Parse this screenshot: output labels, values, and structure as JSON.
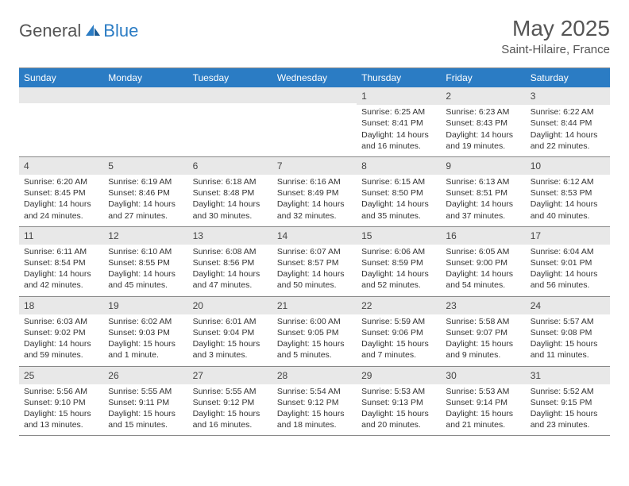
{
  "brand": {
    "general": "General",
    "blue": "Blue"
  },
  "title": "May 2025",
  "location": "Saint-Hilaire, France",
  "colors": {
    "header_bg": "#2b7cc4",
    "header_text": "#ffffff",
    "daynum_bg": "#e8e8e8",
    "border": "#888888",
    "text": "#333333"
  },
  "dayNames": [
    "Sunday",
    "Monday",
    "Tuesday",
    "Wednesday",
    "Thursday",
    "Friday",
    "Saturday"
  ],
  "weeks": [
    [
      {
        "num": "",
        "sunrise": "",
        "sunset": "",
        "daylight": ""
      },
      {
        "num": "",
        "sunrise": "",
        "sunset": "",
        "daylight": ""
      },
      {
        "num": "",
        "sunrise": "",
        "sunset": "",
        "daylight": ""
      },
      {
        "num": "",
        "sunrise": "",
        "sunset": "",
        "daylight": ""
      },
      {
        "num": "1",
        "sunrise": "Sunrise: 6:25 AM",
        "sunset": "Sunset: 8:41 PM",
        "daylight": "Daylight: 14 hours and 16 minutes."
      },
      {
        "num": "2",
        "sunrise": "Sunrise: 6:23 AM",
        "sunset": "Sunset: 8:43 PM",
        "daylight": "Daylight: 14 hours and 19 minutes."
      },
      {
        "num": "3",
        "sunrise": "Sunrise: 6:22 AM",
        "sunset": "Sunset: 8:44 PM",
        "daylight": "Daylight: 14 hours and 22 minutes."
      }
    ],
    [
      {
        "num": "4",
        "sunrise": "Sunrise: 6:20 AM",
        "sunset": "Sunset: 8:45 PM",
        "daylight": "Daylight: 14 hours and 24 minutes."
      },
      {
        "num": "5",
        "sunrise": "Sunrise: 6:19 AM",
        "sunset": "Sunset: 8:46 PM",
        "daylight": "Daylight: 14 hours and 27 minutes."
      },
      {
        "num": "6",
        "sunrise": "Sunrise: 6:18 AM",
        "sunset": "Sunset: 8:48 PM",
        "daylight": "Daylight: 14 hours and 30 minutes."
      },
      {
        "num": "7",
        "sunrise": "Sunrise: 6:16 AM",
        "sunset": "Sunset: 8:49 PM",
        "daylight": "Daylight: 14 hours and 32 minutes."
      },
      {
        "num": "8",
        "sunrise": "Sunrise: 6:15 AM",
        "sunset": "Sunset: 8:50 PM",
        "daylight": "Daylight: 14 hours and 35 minutes."
      },
      {
        "num": "9",
        "sunrise": "Sunrise: 6:13 AM",
        "sunset": "Sunset: 8:51 PM",
        "daylight": "Daylight: 14 hours and 37 minutes."
      },
      {
        "num": "10",
        "sunrise": "Sunrise: 6:12 AM",
        "sunset": "Sunset: 8:53 PM",
        "daylight": "Daylight: 14 hours and 40 minutes."
      }
    ],
    [
      {
        "num": "11",
        "sunrise": "Sunrise: 6:11 AM",
        "sunset": "Sunset: 8:54 PM",
        "daylight": "Daylight: 14 hours and 42 minutes."
      },
      {
        "num": "12",
        "sunrise": "Sunrise: 6:10 AM",
        "sunset": "Sunset: 8:55 PM",
        "daylight": "Daylight: 14 hours and 45 minutes."
      },
      {
        "num": "13",
        "sunrise": "Sunrise: 6:08 AM",
        "sunset": "Sunset: 8:56 PM",
        "daylight": "Daylight: 14 hours and 47 minutes."
      },
      {
        "num": "14",
        "sunrise": "Sunrise: 6:07 AM",
        "sunset": "Sunset: 8:57 PM",
        "daylight": "Daylight: 14 hours and 50 minutes."
      },
      {
        "num": "15",
        "sunrise": "Sunrise: 6:06 AM",
        "sunset": "Sunset: 8:59 PM",
        "daylight": "Daylight: 14 hours and 52 minutes."
      },
      {
        "num": "16",
        "sunrise": "Sunrise: 6:05 AM",
        "sunset": "Sunset: 9:00 PM",
        "daylight": "Daylight: 14 hours and 54 minutes."
      },
      {
        "num": "17",
        "sunrise": "Sunrise: 6:04 AM",
        "sunset": "Sunset: 9:01 PM",
        "daylight": "Daylight: 14 hours and 56 minutes."
      }
    ],
    [
      {
        "num": "18",
        "sunrise": "Sunrise: 6:03 AM",
        "sunset": "Sunset: 9:02 PM",
        "daylight": "Daylight: 14 hours and 59 minutes."
      },
      {
        "num": "19",
        "sunrise": "Sunrise: 6:02 AM",
        "sunset": "Sunset: 9:03 PM",
        "daylight": "Daylight: 15 hours and 1 minute."
      },
      {
        "num": "20",
        "sunrise": "Sunrise: 6:01 AM",
        "sunset": "Sunset: 9:04 PM",
        "daylight": "Daylight: 15 hours and 3 minutes."
      },
      {
        "num": "21",
        "sunrise": "Sunrise: 6:00 AM",
        "sunset": "Sunset: 9:05 PM",
        "daylight": "Daylight: 15 hours and 5 minutes."
      },
      {
        "num": "22",
        "sunrise": "Sunrise: 5:59 AM",
        "sunset": "Sunset: 9:06 PM",
        "daylight": "Daylight: 15 hours and 7 minutes."
      },
      {
        "num": "23",
        "sunrise": "Sunrise: 5:58 AM",
        "sunset": "Sunset: 9:07 PM",
        "daylight": "Daylight: 15 hours and 9 minutes."
      },
      {
        "num": "24",
        "sunrise": "Sunrise: 5:57 AM",
        "sunset": "Sunset: 9:08 PM",
        "daylight": "Daylight: 15 hours and 11 minutes."
      }
    ],
    [
      {
        "num": "25",
        "sunrise": "Sunrise: 5:56 AM",
        "sunset": "Sunset: 9:10 PM",
        "daylight": "Daylight: 15 hours and 13 minutes."
      },
      {
        "num": "26",
        "sunrise": "Sunrise: 5:55 AM",
        "sunset": "Sunset: 9:11 PM",
        "daylight": "Daylight: 15 hours and 15 minutes."
      },
      {
        "num": "27",
        "sunrise": "Sunrise: 5:55 AM",
        "sunset": "Sunset: 9:12 PM",
        "daylight": "Daylight: 15 hours and 16 minutes."
      },
      {
        "num": "28",
        "sunrise": "Sunrise: 5:54 AM",
        "sunset": "Sunset: 9:12 PM",
        "daylight": "Daylight: 15 hours and 18 minutes."
      },
      {
        "num": "29",
        "sunrise": "Sunrise: 5:53 AM",
        "sunset": "Sunset: 9:13 PM",
        "daylight": "Daylight: 15 hours and 20 minutes."
      },
      {
        "num": "30",
        "sunrise": "Sunrise: 5:53 AM",
        "sunset": "Sunset: 9:14 PM",
        "daylight": "Daylight: 15 hours and 21 minutes."
      },
      {
        "num": "31",
        "sunrise": "Sunrise: 5:52 AM",
        "sunset": "Sunset: 9:15 PM",
        "daylight": "Daylight: 15 hours and 23 minutes."
      }
    ]
  ]
}
